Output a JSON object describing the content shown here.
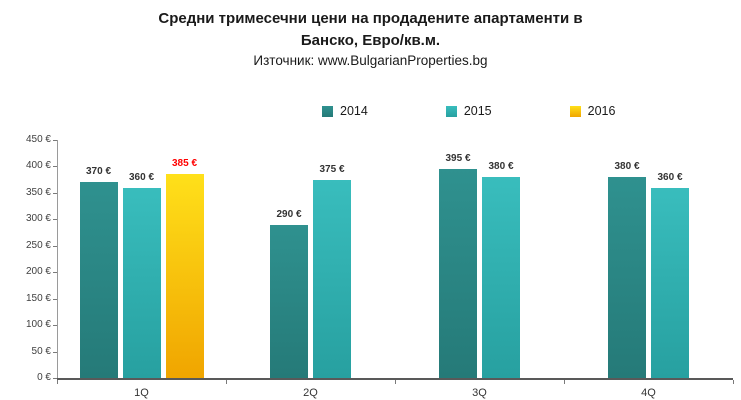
{
  "header": {
    "title_line1": "Средни тримесечни цени на продадените апартаменти в",
    "title_line2": "Банско, Евро/кв.м.",
    "source": "Източник: www.BulgarianProperties.bg"
  },
  "chart_data": {
    "type": "bar",
    "title": "Средни тримесечни цени на продадените апартаменти в Банско, Евро/кв.м.",
    "subtitle": "Източник: www.BulgarianProperties.bg",
    "categories": [
      "1Q",
      "2Q",
      "3Q",
      "4Q"
    ],
    "series": [
      {
        "name": "2014",
        "color_top": "#2f918f",
        "color_bottom": "#257a78",
        "label_color": "#333333",
        "values": [
          370,
          290,
          395,
          380
        ]
      },
      {
        "name": "2015",
        "color_top": "#39bdbd",
        "color_bottom": "#27a0a0",
        "label_color": "#333333",
        "values": [
          360,
          375,
          380,
          360
        ]
      },
      {
        "name": "2016",
        "color_top": "#ffe01a",
        "color_bottom": "#f0a500",
        "label_color": "#ff0000",
        "values": [
          385,
          null,
          null,
          null
        ]
      }
    ],
    "ylim": [
      0,
      450
    ],
    "ytick_step": 50,
    "ytick_suffix": " €",
    "value_suffix": " €",
    "legend_position": "top",
    "grid": false
  }
}
